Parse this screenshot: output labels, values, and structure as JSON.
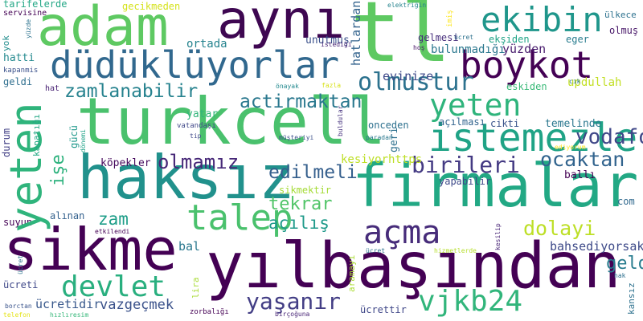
{
  "words": [
    {
      "text": "turkcell",
      "color": "#4ac16d"
    },
    {
      "text": "firmalar",
      "color": "#22a884"
    },
    {
      "text": "yılbaşından",
      "color": "#440154"
    },
    {
      "text": "haksız",
      "color": "#21918c"
    },
    {
      "text": "sikme",
      "color": "#440154"
    },
    {
      "text": "adam",
      "color": "#5ec962"
    },
    {
      "text": "aynı",
      "color": "#3e0751"
    },
    {
      "text": "tl",
      "color": "#5ec962"
    },
    {
      "text": "düdüklüyorlar",
      "color": "#31688e"
    },
    {
      "text": "boykot",
      "color": "#440154"
    },
    {
      "text": "ekibin",
      "color": "#1f968b"
    },
    {
      "text": "yeten",
      "color": "#2fb47c"
    },
    {
      "text": "istemezler",
      "color": "#20a386"
    },
    {
      "text": "talep",
      "color": "#4ac16d"
    },
    {
      "text": "açma",
      "color": "#472c7a"
    },
    {
      "text": "devlet",
      "color": "#29af7f"
    },
    {
      "text": "vjkb24",
      "color": "#31b57b"
    },
    {
      "text": "zamlanabilir",
      "color": "#26828e"
    },
    {
      "text": "actirmaktan",
      "color": "#2a788e"
    },
    {
      "text": "olmustur",
      "color": "#2c728e"
    },
    {
      "text": "işe",
      "color": "#2db27d"
    },
    {
      "text": "olmamız",
      "color": "#472878"
    },
    {
      "text": "birileri",
      "color": "#443a83"
    },
    {
      "text": "edilmeli",
      "color": "#355f8d"
    },
    {
      "text": "ocaktan",
      "color": "#32648e"
    },
    {
      "text": "vodafone",
      "color": "#3f4788"
    },
    {
      "text": "zam",
      "color": "#1f9e89"
    },
    {
      "text": "tekrar",
      "color": "#52c569"
    },
    {
      "text": "açılış",
      "color": "#1f9a8a"
    },
    {
      "text": "dolayi",
      "color": "#bddf26"
    },
    {
      "text": "yaşanır",
      "color": "#433e85"
    },
    {
      "text": "geldiniz",
      "color": "#287c8e"
    },
    {
      "text": "bal",
      "color": "#2a788e"
    },
    {
      "text": "bahsediyorsak",
      "color": "#3e4a89"
    },
    {
      "text": "vazgeçmek",
      "color": "#3b528b"
    },
    {
      "text": "ücretidir",
      "color": "#38588c"
    },
    {
      "text": "evinize",
      "color": "#3e4989"
    },
    {
      "text": "bulunmadığı",
      "color": "#2a778e"
    },
    {
      "text": "yüzden",
      "color": "#481b6d"
    },
    {
      "text": "servisine",
      "color": "#440154"
    },
    {
      "text": "ekşiden",
      "color": "#20a386"
    },
    {
      "text": "updullah",
      "color": "#c2df23"
    },
    {
      "text": "unutmuş",
      "color": "#3b518b"
    },
    {
      "text": "ortada",
      "color": "#25838e"
    },
    {
      "text": "hatti",
      "color": "#23898e"
    },
    {
      "text": "geldi",
      "color": "#2e6e8e"
    },
    {
      "text": "yatar",
      "color": "#31b57b"
    },
    {
      "text": "temelinde",
      "color": "#2a778e"
    },
    {
      "text": "kesiyorhttps",
      "color": "#bddf26"
    },
    {
      "text": "köpekler",
      "color": "#460b5e"
    },
    {
      "text": "ballı",
      "color": "#440154"
    },
    {
      "text": "yapabilir",
      "color": "#3e4a89"
    },
    {
      "text": "sikmektir",
      "color": "#a5db36"
    },
    {
      "text": "gecikmeden",
      "color": "#d5e21a"
    },
    {
      "text": "tarifelerde",
      "color": "#22a785"
    },
    {
      "text": "hatlardan",
      "color": "#33638d"
    },
    {
      "text": "ülkece",
      "color": "#2c718e"
    },
    {
      "text": "olmuş",
      "color": "#481769"
    },
    {
      "text": "eger",
      "color": "#287c8e"
    },
    {
      "text": "eskiden",
      "color": "#38b977"
    },
    {
      "text": "gelmesi",
      "color": "#472e7c"
    },
    {
      "text": "geri",
      "color": "#2d708e"
    },
    {
      "text": "açılması",
      "color": "#32658e"
    },
    {
      "text": "cikti",
      "color": "#3a548c"
    },
    {
      "text": "onceden",
      "color": "#2d708e"
    },
    {
      "text": "gücü",
      "color": "#1f988b"
    },
    {
      "text": "durum",
      "color": "#424086"
    },
    {
      "text": "internet",
      "color": "#1f948c"
    },
    {
      "text": "suyun",
      "color": "#440154"
    },
    {
      "text": "alınan",
      "color": "#34618d"
    },
    {
      "text": "com",
      "color": "#30698e"
    },
    {
      "text": "ücreti",
      "color": "#3f4889"
    },
    {
      "text": "ücrettir",
      "color": "#3f4788"
    },
    {
      "text": "kapatığı",
      "color": "#22a884"
    },
    {
      "text": "yok",
      "color": "#228d8d"
    },
    {
      "text": "hat",
      "color": "#482173"
    },
    {
      "text": "lira",
      "color": "#a8db34"
    },
    {
      "text": "aramayı",
      "color": "#aadc32"
    },
    {
      "text": "kansız",
      "color": "#2d718e"
    },
    {
      "text": "elektriğin",
      "color": "#25838e"
    },
    {
      "text": "imiş",
      "color": "#fde725"
    },
    {
      "text": "istediği",
      "color": "#482576"
    },
    {
      "text": "ücret",
      "color": "#2d718e"
    },
    {
      "text": "hoş",
      "color": "#481668"
    },
    {
      "text": "kapanmis",
      "color": "#3b518b"
    },
    {
      "text": "yüzde",
      "color": "#2c738e"
    },
    {
      "text": "önayak",
      "color": "#23898e"
    },
    {
      "text": "fazla",
      "color": "#d8e219"
    },
    {
      "text": "cık",
      "color": "#2a768e"
    },
    {
      "text": "vatandaşı",
      "color": "#3f4788"
    },
    {
      "text": "buldular",
      "color": "#46327e"
    },
    {
      "text": "paradan",
      "color": "#2a788e"
    },
    {
      "text": "ediyorum",
      "color": "#fde725"
    },
    {
      "text": "tip",
      "color": "#3e4989"
    },
    {
      "text": "dönemi",
      "color": "#1fa287"
    },
    {
      "text": "müşteriyi",
      "color": "#3c508b"
    },
    {
      "text": "etkilendi",
      "color": "#440154"
    },
    {
      "text": "kesilip",
      "color": "#482576"
    },
    {
      "text": "hizmetlerde",
      "color": "#b5de2b"
    },
    {
      "text": "hak",
      "color": "#2d708e"
    },
    {
      "text": "borctan",
      "color": "#3a548c"
    },
    {
      "text": "telefon",
      "color": "#e5e419"
    },
    {
      "text": "hızlıresim",
      "color": "#35b779"
    },
    {
      "text": "zorbalığı",
      "color": "#440154"
    },
    {
      "text": "birçoğuna",
      "color": "#482576"
    }
  ]
}
